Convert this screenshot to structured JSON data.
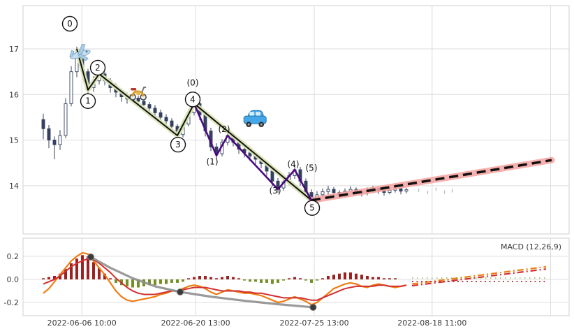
{
  "colors": {
    "candle": "#33415e",
    "wave_primary": "#111111",
    "wave_primary_glow": "#d9e4b4",
    "wave_sub": "#4b0a82",
    "projection": "#111111",
    "projection_glow": "#f5a3a0",
    "hist_pos": "#9e2020",
    "hist_neg": "#748f23",
    "macd_line": "#f07d12",
    "signal_line": "#d23030",
    "trend_line": "#8f8f8f",
    "trend_dot": "#3a3a3a",
    "forecast": "#e8501e",
    "grid": "#dcdcdc",
    "axis_text": "#3a3a3a",
    "panel_border": "#cfcfcf"
  },
  "chart_data": [
    {
      "type": "candlestick",
      "title": "",
      "ylabel": "",
      "yticks": [
        17,
        16,
        15,
        14
      ],
      "ylim": [
        12.94,
        17.95
      ],
      "grid": true,
      "xticks": [
        {
          "pos": 6.9,
          "label": "2022-06-06 10:00"
        },
        {
          "pos": 27.25,
          "label": "2022-06-20 13:00"
        },
        {
          "pos": 48.5,
          "label": "2022-07-25 13:00"
        },
        {
          "pos": 69.6,
          "label": "2022-08-18 11:00"
        },
        {
          "pos": 90.8,
          "label": ""
        }
      ],
      "candles": [
        [
          15.45,
          15.58,
          15.02,
          15.25
        ],
        [
          15.25,
          15.33,
          14.82,
          15.0
        ],
        [
          15.0,
          15.08,
          14.58,
          14.9
        ],
        [
          14.9,
          15.22,
          14.78,
          15.1
        ],
        [
          15.1,
          15.92,
          15.04,
          15.8
        ],
        [
          15.8,
          16.62,
          15.74,
          16.5
        ],
        [
          16.5,
          17.05,
          16.38,
          16.9
        ],
        [
          16.9,
          16.98,
          16.42,
          16.5
        ],
        [
          16.5,
          16.56,
          16.02,
          16.15
        ],
        [
          16.15,
          16.4,
          16.06,
          16.3
        ],
        [
          16.3,
          16.54,
          16.22,
          16.45
        ],
        [
          16.45,
          16.5,
          16.2,
          16.3
        ],
        [
          16.3,
          16.36,
          16.04,
          16.15
        ],
        [
          16.15,
          16.24,
          15.94,
          16.05
        ],
        [
          16.05,
          16.12,
          15.84,
          15.95
        ],
        [
          15.95,
          16.04,
          15.8,
          15.9
        ],
        [
          15.9,
          16.02,
          15.82,
          15.92
        ],
        [
          15.92,
          15.98,
          15.74,
          15.85
        ],
        [
          15.85,
          15.92,
          15.66,
          15.78
        ],
        [
          15.78,
          15.84,
          15.58,
          15.7
        ],
        [
          15.7,
          15.77,
          15.5,
          15.6
        ],
        [
          15.6,
          15.67,
          15.4,
          15.5
        ],
        [
          15.5,
          15.57,
          15.31,
          15.42
        ],
        [
          15.42,
          15.48,
          15.18,
          15.3
        ],
        [
          15.3,
          15.35,
          15.02,
          15.12
        ],
        [
          15.12,
          15.44,
          15.06,
          15.35
        ],
        [
          15.35,
          15.68,
          15.3,
          15.6
        ],
        [
          15.6,
          15.9,
          15.54,
          15.8
        ],
        [
          15.8,
          15.85,
          15.44,
          15.55
        ],
        [
          15.55,
          15.62,
          15.08,
          15.2
        ],
        [
          15.2,
          15.27,
          14.76,
          14.85
        ],
        [
          14.85,
          14.93,
          14.58,
          14.7
        ],
        [
          14.7,
          15.02,
          14.64,
          14.95
        ],
        [
          14.95,
          15.2,
          14.88,
          15.1
        ],
        [
          15.1,
          15.16,
          14.86,
          14.95
        ],
        [
          14.95,
          15.03,
          14.7,
          14.8
        ],
        [
          14.8,
          14.88,
          14.62,
          14.72
        ],
        [
          14.72,
          14.8,
          14.54,
          14.65
        ],
        [
          14.65,
          14.73,
          14.48,
          14.58
        ],
        [
          14.58,
          14.65,
          14.38,
          14.48
        ],
        [
          14.48,
          14.55,
          14.22,
          14.32
        ],
        [
          14.32,
          14.38,
          13.98,
          14.1
        ],
        [
          14.1,
          14.17,
          13.84,
          13.95
        ],
        [
          13.95,
          14.16,
          13.89,
          14.08
        ],
        [
          14.08,
          14.3,
          14.01,
          14.22
        ],
        [
          14.22,
          14.44,
          14.15,
          14.35
        ],
        [
          14.35,
          14.41,
          14.0,
          14.1
        ],
        [
          14.1,
          14.16,
          13.76,
          13.85
        ],
        [
          13.85,
          13.92,
          13.6,
          13.7
        ],
        [
          13.7,
          13.88,
          13.64,
          13.8
        ],
        [
          13.8,
          13.94,
          13.74,
          13.87
        ],
        [
          13.87,
          14.0,
          13.81,
          13.92
        ],
        [
          13.92,
          13.97,
          13.78,
          13.85
        ],
        [
          13.85,
          13.9,
          13.72,
          13.8
        ],
        [
          13.8,
          13.94,
          13.75,
          13.88
        ],
        [
          13.88,
          13.99,
          13.83,
          13.92
        ],
        [
          13.92,
          13.96,
          13.8,
          13.87
        ],
        [
          13.87,
          13.91,
          13.76,
          13.84
        ],
        [
          13.84,
          13.96,
          13.79,
          13.9
        ],
        [
          13.9,
          14.0,
          13.85,
          13.94
        ],
        [
          13.94,
          13.97,
          13.82,
          13.89
        ],
        [
          13.89,
          13.93,
          13.78,
          13.85
        ],
        [
          13.85,
          13.96,
          13.81,
          13.9
        ],
        [
          13.9,
          13.99,
          13.85,
          13.93
        ],
        [
          13.93,
          13.96,
          13.81,
          13.88
        ],
        [
          13.88,
          13.95,
          13.83,
          13.91
        ]
      ],
      "elliott_waves": {
        "primary": {
          "labels": [
            "0",
            "1",
            "2",
            "3",
            "4",
            "5"
          ],
          "pivots": [
            [
              6,
              17.0
            ],
            [
              8,
              16.1
            ],
            [
              10,
              16.45
            ],
            [
              24,
              15.1
            ],
            [
              27,
              15.8
            ],
            [
              48,
              13.68
            ]
          ]
        },
        "sub": {
          "labels": [
            "(0)",
            "(1)",
            "(2)",
            "(3)",
            "(4)",
            "(5)"
          ],
          "pivots": [
            [
              27,
              15.8
            ],
            [
              31,
              14.66
            ],
            [
              33,
              15.1
            ],
            [
              42,
              13.92
            ],
            [
              45,
              14.35
            ],
            [
              48,
              13.68
            ]
          ]
        }
      },
      "wave_label_offsets": {
        "0": [
          -10,
          -36
        ],
        "1": [
          0,
          16
        ],
        "2": [
          -2,
          -9
        ],
        "3": [
          1,
          13
        ],
        "4": [
          -2,
          -6
        ],
        "5": [
          1,
          11
        ],
        "(0)": [
          -2,
          -30
        ],
        "(1)": [
          -6,
          9
        ],
        "(2)": [
          -5,
          -9
        ],
        "(3)": [
          -4,
          2
        ],
        "(4)": [
          -2,
          -8
        ],
        "(5)": [
          0,
          -46
        ]
      },
      "projection": {
        "from": [
          48,
          13.68
        ],
        "to": [
          91,
          14.56
        ]
      },
      "icons": [
        {
          "name": "airplane-icon",
          "i": 6.6,
          "price": 16.88
        },
        {
          "name": "scooter-icon",
          "i": 16.9,
          "price": 16.05
        },
        {
          "name": "car-icon",
          "i": 37.9,
          "price": 15.42
        }
      ],
      "sparse_marks": [
        [
          67.2,
          13.9
        ],
        [
          68.8,
          13.85
        ],
        [
          70.3,
          13.92
        ],
        [
          71.8,
          13.86
        ],
        [
          73.2,
          13.89
        ]
      ]
    },
    {
      "type": "macd",
      "label": "MACD (12,26,9)",
      "yticks": [
        0.2,
        0.0,
        -0.2
      ],
      "ylim": [
        -0.315,
        0.357
      ],
      "histogram": [
        0.01,
        0.02,
        0.03,
        0.05,
        0.09,
        0.14,
        0.18,
        0.21,
        0.2,
        0.15,
        0.1,
        0.05,
        0.01,
        -0.03,
        -0.05,
        -0.06,
        -0.07,
        -0.07,
        -0.06,
        -0.05,
        -0.05,
        -0.04,
        -0.04,
        -0.03,
        -0.03,
        -0.02,
        0.01,
        0.02,
        0.03,
        0.03,
        0.02,
        0.01,
        0.02,
        0.03,
        0.02,
        0.01,
        -0.01,
        -0.02,
        -0.02,
        -0.03,
        -0.03,
        -0.04,
        -0.03,
        -0.01,
        0.01,
        0.02,
        0.01,
        -0.01,
        -0.03,
        -0.01,
        0.01,
        0.03,
        0.04,
        0.05,
        0.06,
        0.06,
        0.05,
        0.04,
        0.03,
        0.02,
        0.02,
        0.01,
        0.01,
        0.01,
        0.0,
        0.0
      ],
      "macd": [
        -0.12,
        -0.08,
        -0.02,
        0.04,
        0.1,
        0.16,
        0.2,
        0.23,
        0.22,
        0.16,
        0.1,
        0.04,
        -0.03,
        -0.1,
        -0.15,
        -0.18,
        -0.19,
        -0.18,
        -0.17,
        -0.16,
        -0.15,
        -0.13,
        -0.12,
        -0.1,
        -0.1,
        -0.08,
        -0.06,
        -0.05,
        -0.06,
        -0.08,
        -0.11,
        -0.13,
        -0.11,
        -0.09,
        -0.1,
        -0.11,
        -0.12,
        -0.12,
        -0.13,
        -0.14,
        -0.16,
        -0.18,
        -0.2,
        -0.19,
        -0.17,
        -0.15,
        -0.17,
        -0.19,
        -0.22,
        -0.2,
        -0.16,
        -0.12,
        -0.08,
        -0.06,
        -0.04,
        -0.03,
        -0.04,
        -0.06,
        -0.07,
        -0.05,
        -0.04,
        -0.05,
        -0.06,
        -0.07,
        -0.06,
        -0.05
      ],
      "signal": [
        -0.04,
        -0.02,
        0.0,
        0.03,
        0.07,
        0.11,
        0.14,
        0.16,
        0.18,
        0.17,
        0.14,
        0.1,
        0.06,
        0.01,
        -0.03,
        -0.07,
        -0.1,
        -0.12,
        -0.13,
        -0.13,
        -0.13,
        -0.12,
        -0.11,
        -0.1,
        -0.1,
        -0.09,
        -0.08,
        -0.07,
        -0.07,
        -0.07,
        -0.08,
        -0.09,
        -0.1,
        -0.1,
        -0.1,
        -0.1,
        -0.11,
        -0.11,
        -0.12,
        -0.12,
        -0.13,
        -0.14,
        -0.15,
        -0.16,
        -0.16,
        -0.16,
        -0.16,
        -0.17,
        -0.18,
        -0.18,
        -0.16,
        -0.14,
        -0.12,
        -0.1,
        -0.08,
        -0.07,
        -0.06,
        -0.06,
        -0.06,
        -0.06,
        -0.05,
        -0.05,
        -0.06,
        -0.06,
        -0.06,
        -0.05
      ],
      "trend": {
        "points": [
          [
            8.5,
            0.194
          ],
          [
            12,
            0.1
          ],
          [
            16,
            0.01
          ],
          [
            20,
            -0.06
          ],
          [
            24.5,
            -0.109
          ],
          [
            30,
            -0.15
          ],
          [
            36,
            -0.185
          ],
          [
            42,
            -0.215
          ],
          [
            48.3,
            -0.242
          ]
        ],
        "dots": [
          [
            8.5,
            0.194
          ],
          [
            24.5,
            -0.109
          ],
          [
            48.3,
            -0.242
          ]
        ]
      },
      "forecast": {
        "lines": [
          {
            "from": [
              66,
              -0.04
            ],
            "to": [
              90,
              0.11
            ],
            "color": "macd_line"
          },
          {
            "from": [
              66,
              -0.055
            ],
            "to": [
              90,
              0.09
            ],
            "color": "signal_line"
          }
        ],
        "dotted_red_y": -0.018,
        "dotted_green_y": 0.012,
        "dotted_range": [
          66,
          90
        ]
      }
    }
  ]
}
